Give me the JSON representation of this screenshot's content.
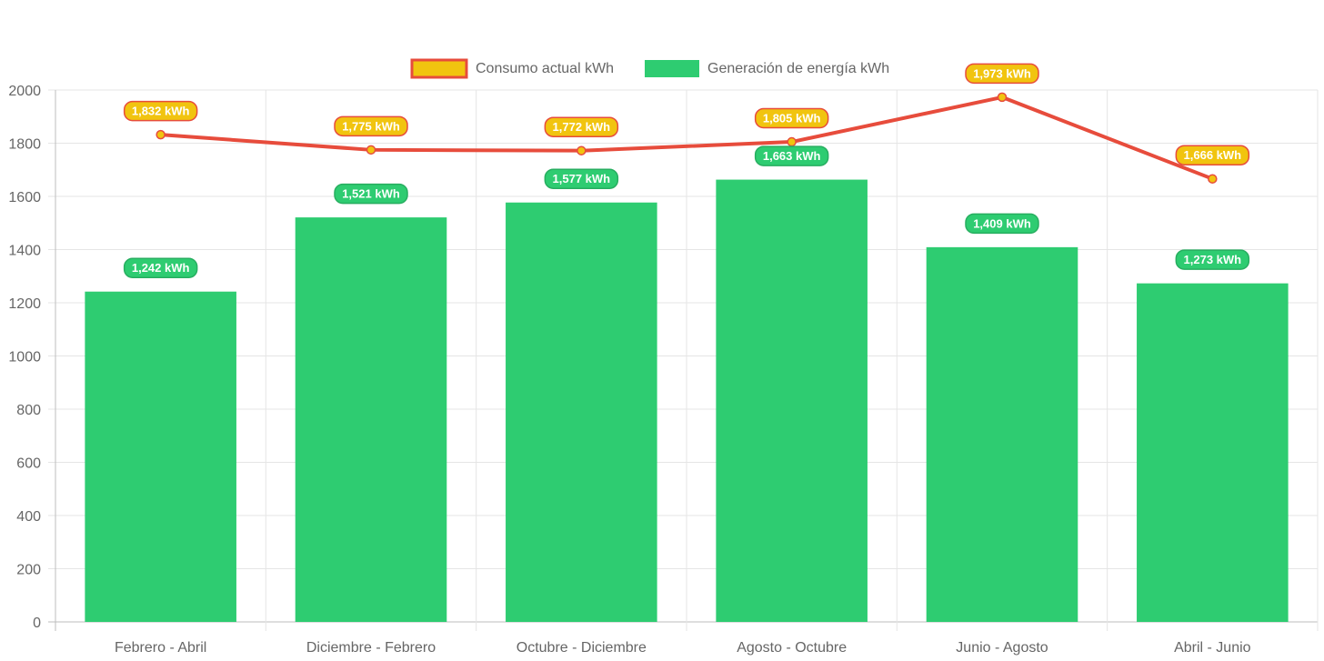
{
  "chart_data": {
    "type": "bar",
    "categories": [
      "Febrero - Abril",
      "Diciembre - Febrero",
      "Octubre - Diciembre",
      "Agosto - Octubre",
      "Junio - Agosto",
      "Abril - Junio"
    ],
    "series": [
      {
        "name": "Consumo actual kWh",
        "type": "line",
        "values": [
          1832,
          1775,
          1772,
          1805,
          1973,
          1666
        ],
        "labels": [
          "1,832 kWh",
          "1,775 kWh",
          "1,772 kWh",
          "1,805 kWh",
          "1,973 kWh",
          "1,666 kWh"
        ],
        "color": "#E74C3C",
        "fill": "#F1C40F"
      },
      {
        "name": "Generación de energía kWh",
        "type": "bar",
        "values": [
          1242,
          1521,
          1577,
          1663,
          1409,
          1273
        ],
        "labels": [
          "1,242 kWh",
          "1,521 kWh",
          "1,577 kWh",
          "1,663 kWh",
          "1,409 kWh",
          "1,273 kWh"
        ],
        "color": "#2ECC71"
      }
    ],
    "yticks": [
      "0",
      "200",
      "400",
      "600",
      "800",
      "1000",
      "1200",
      "1400",
      "1600",
      "1800",
      "2000"
    ],
    "ylim": [
      0,
      2000
    ],
    "grid": true,
    "legend_position": "top"
  }
}
